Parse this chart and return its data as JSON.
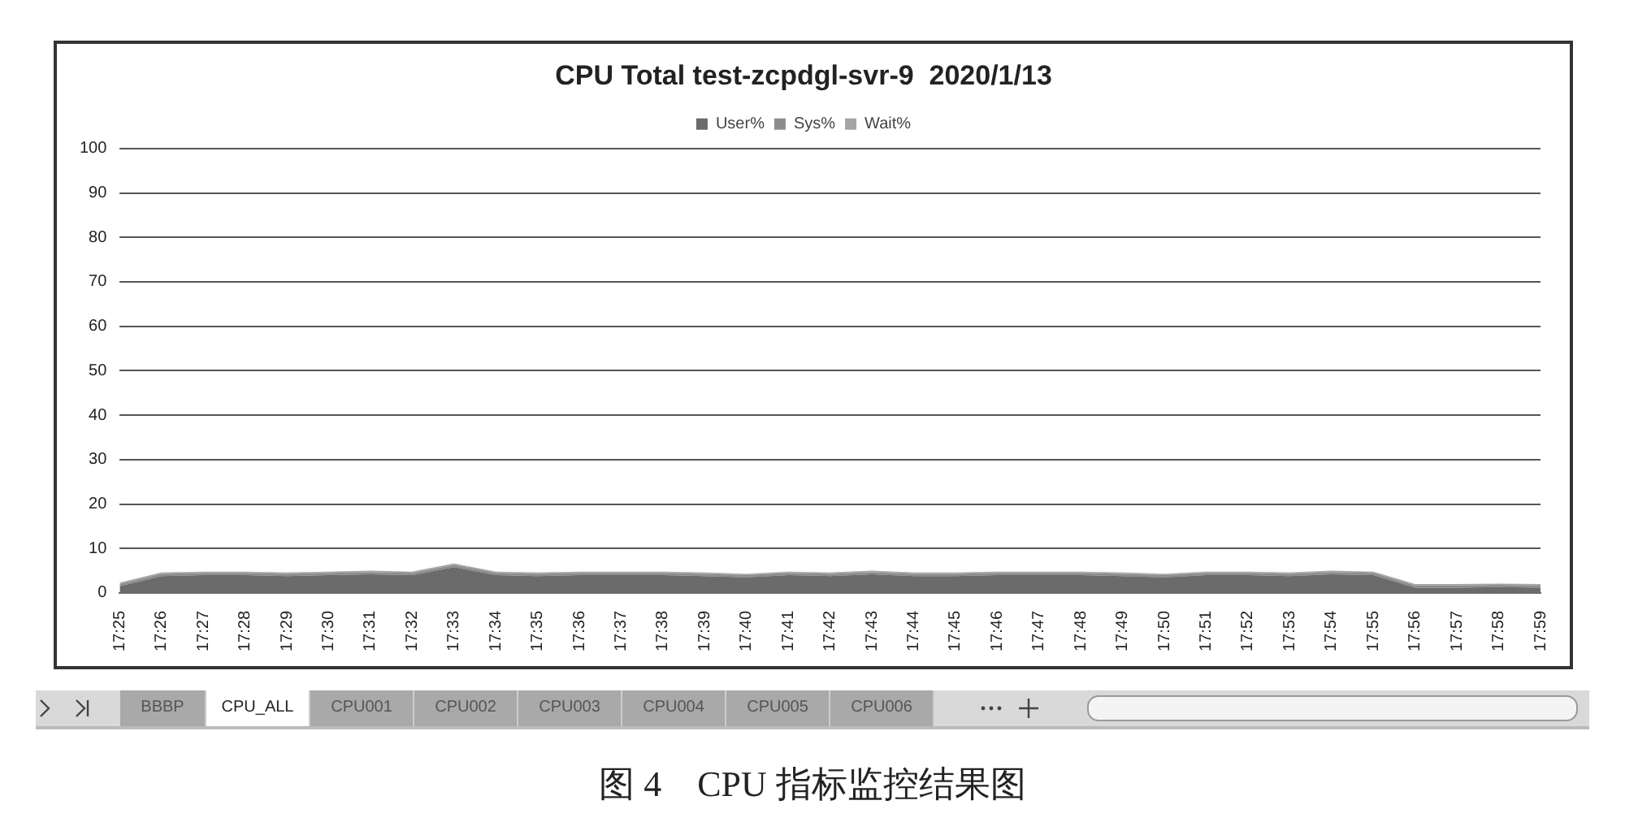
{
  "chart_data": {
    "type": "area",
    "title": "CPU Total test-zcpdgl-svr-9  2020/1/13",
    "categories": [
      "17:25",
      "17:26",
      "17:27",
      "17:28",
      "17:29",
      "17:30",
      "17:31",
      "17:32",
      "17:33",
      "17:34",
      "17:35",
      "17:36",
      "17:37",
      "17:38",
      "17:39",
      "17:40",
      "17:41",
      "17:42",
      "17:43",
      "17:44",
      "17:45",
      "17:46",
      "17:47",
      "17:48",
      "17:49",
      "17:50",
      "17:51",
      "17:52",
      "17:53",
      "17:54",
      "17:55",
      "17:56",
      "17:57",
      "17:58",
      "17:59"
    ],
    "series": [
      {
        "name": "User%",
        "color": "#6b6b6b",
        "values": [
          1.5,
          3.8,
          4,
          4,
          3.8,
          4,
          4.2,
          4,
          5.8,
          4,
          3.8,
          4,
          4,
          4,
          3.8,
          3.5,
          4,
          3.8,
          4.2,
          3.8,
          3.8,
          4,
          4,
          4,
          3.8,
          3.5,
          4,
          4,
          3.8,
          4.2,
          4,
          1.2,
          1.2,
          1.3,
          1.2
        ]
      },
      {
        "name": "Sys%",
        "color": "#8c8c8c",
        "values": [
          0.5,
          0.5,
          0.5,
          0.5,
          0.5,
          0.5,
          0.5,
          0.5,
          0.5,
          0.5,
          0.5,
          0.5,
          0.5,
          0.5,
          0.5,
          0.5,
          0.5,
          0.5,
          0.5,
          0.5,
          0.5,
          0.5,
          0.5,
          0.5,
          0.5,
          0.5,
          0.5,
          0.5,
          0.5,
          0.5,
          0.5,
          0.5,
          0.5,
          0.5,
          0.5
        ]
      },
      {
        "name": "Wait%",
        "color": "#a5a5a5",
        "values": [
          0.3,
          0.3,
          0.3,
          0.3,
          0.3,
          0.3,
          0.3,
          0.3,
          0.3,
          0.3,
          0.3,
          0.3,
          0.3,
          0.3,
          0.3,
          0.3,
          0.3,
          0.3,
          0.3,
          0.3,
          0.3,
          0.3,
          0.3,
          0.3,
          0.3,
          0.3,
          0.3,
          0.3,
          0.3,
          0.3,
          0.3,
          0.3,
          0.3,
          0.3,
          0.3
        ]
      }
    ],
    "stacked": true,
    "ylim": [
      0,
      100
    ],
    "yticks": [
      0,
      10,
      20,
      30,
      40,
      50,
      60,
      70,
      80,
      90,
      100
    ],
    "grid": "y",
    "legend": "top",
    "marker": "none",
    "annotations": [
      "BBBP",
      "CPU_ALL",
      "CPU001",
      "CPU002",
      "CPU003",
      "CPU004",
      "CPU005",
      "CPU006",
      "图 4　CPU 指标监控结果图"
    ]
  }
}
